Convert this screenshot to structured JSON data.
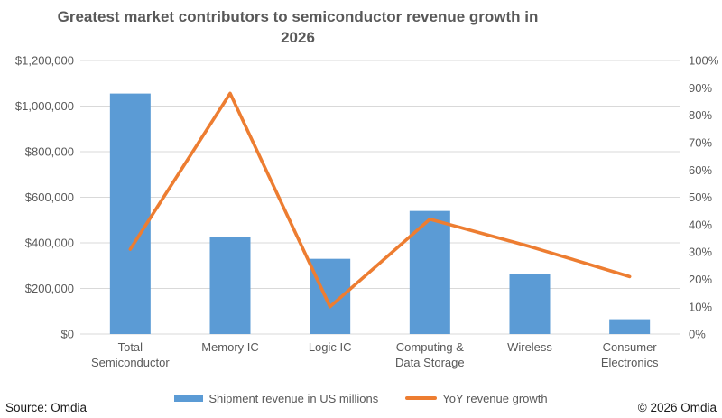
{
  "title": {
    "line1": "Greatest market contributors to semiconductor revenue growth in",
    "line2": "2026"
  },
  "legend": {
    "bar_label": "Shipment revenue in US millions",
    "line_label": "YoY revenue growth"
  },
  "footer": {
    "source": "Source: Omdia",
    "copyright": "© 2026 Omdia"
  },
  "colors": {
    "bar": "#5B9BD5",
    "line": "#ED7D31",
    "grid": "#D9D9D9",
    "axis_text": "#595959",
    "title_text": "#595959",
    "footer_text": "#1A1A1A"
  },
  "chart_data": {
    "type": "bar+line",
    "title": "Greatest market contributors to semiconductor revenue growth in 2026",
    "categories": [
      "Total Semiconductor",
      "Memory IC",
      "Logic IC",
      "Computing & Data Storage",
      "Wireless",
      "Consumer Electronics"
    ],
    "categories_display": [
      [
        "Total",
        "Semiconductor"
      ],
      [
        "Memory IC"
      ],
      [
        "Logic IC"
      ],
      [
        "Computing &",
        "Data Storage"
      ],
      [
        "Wireless"
      ],
      [
        "Consumer",
        "Electronics"
      ]
    ],
    "series": [
      {
        "name": "Shipment revenue in US millions",
        "type": "bar",
        "axis": "left",
        "values": [
          1055000,
          425000,
          330000,
          540000,
          265000,
          65000
        ]
      },
      {
        "name": "YoY revenue growth",
        "type": "line",
        "axis": "right",
        "unit": "%",
        "values": [
          31,
          88,
          10,
          42,
          32,
          21
        ]
      }
    ],
    "left_axis": {
      "ticks": [
        "$0",
        "$200,000",
        "$400,000",
        "$600,000",
        "$800,000",
        "$1,000,000",
        "$1,200,000"
      ],
      "range": [
        0,
        1200000
      ]
    },
    "right_axis": {
      "ticks": [
        "0%",
        "10%",
        "20%",
        "30%",
        "40%",
        "50%",
        "60%",
        "70%",
        "80%",
        "90%",
        "100%"
      ],
      "range": [
        0,
        100
      ]
    },
    "grid": "horizontal",
    "legend_position": "bottom"
  }
}
